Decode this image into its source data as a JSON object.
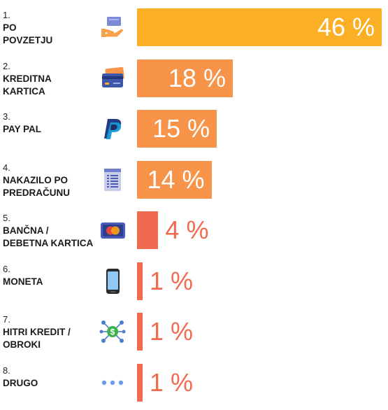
{
  "colors": {
    "high": "#fbaf25",
    "mid": "#f7944a",
    "low": "#f06a4f"
  },
  "chart_data": {
    "type": "bar",
    "orientation": "horizontal",
    "unit": "%",
    "xlim": [
      0,
      46
    ],
    "categories": [
      {
        "rank": "1.",
        "lines": [
          "PO",
          "POVZETJU"
        ],
        "icon": "cash-hand-icon",
        "value": 46,
        "label": "46 %"
      },
      {
        "rank": "2.",
        "lines": [
          "KREDITNA",
          "KARTICA"
        ],
        "icon": "credit-card-icon",
        "value": 18,
        "label": "18 %"
      },
      {
        "rank": "3.",
        "lines": [
          "PAY PAL"
        ],
        "icon": "paypal-icon",
        "value": 15,
        "label": "15 %"
      },
      {
        "rank": "4.",
        "lines": [
          "NAKAZILO PO",
          "PREDRAČUNU"
        ],
        "icon": "invoice-icon",
        "value": 14,
        "label": "14 %"
      },
      {
        "rank": "5.",
        "lines": [
          "BANČNA /",
          "DEBETNA KARTICA"
        ],
        "icon": "debit-card-icon",
        "value": 4,
        "label": "4 %"
      },
      {
        "rank": "6.",
        "lines": [
          "MONETA"
        ],
        "icon": "mobile-phone-icon",
        "value": 1,
        "label": "1 %"
      },
      {
        "rank": "7.",
        "lines": [
          "HITRI KREDIT /",
          "OBROKI"
        ],
        "icon": "quick-loan-icon",
        "value": 1,
        "label": "1 %"
      },
      {
        "rank": "8.",
        "lines": [
          "DRUGO"
        ],
        "icon": "more-dots-icon",
        "value": 1,
        "label": "1 %"
      }
    ]
  }
}
